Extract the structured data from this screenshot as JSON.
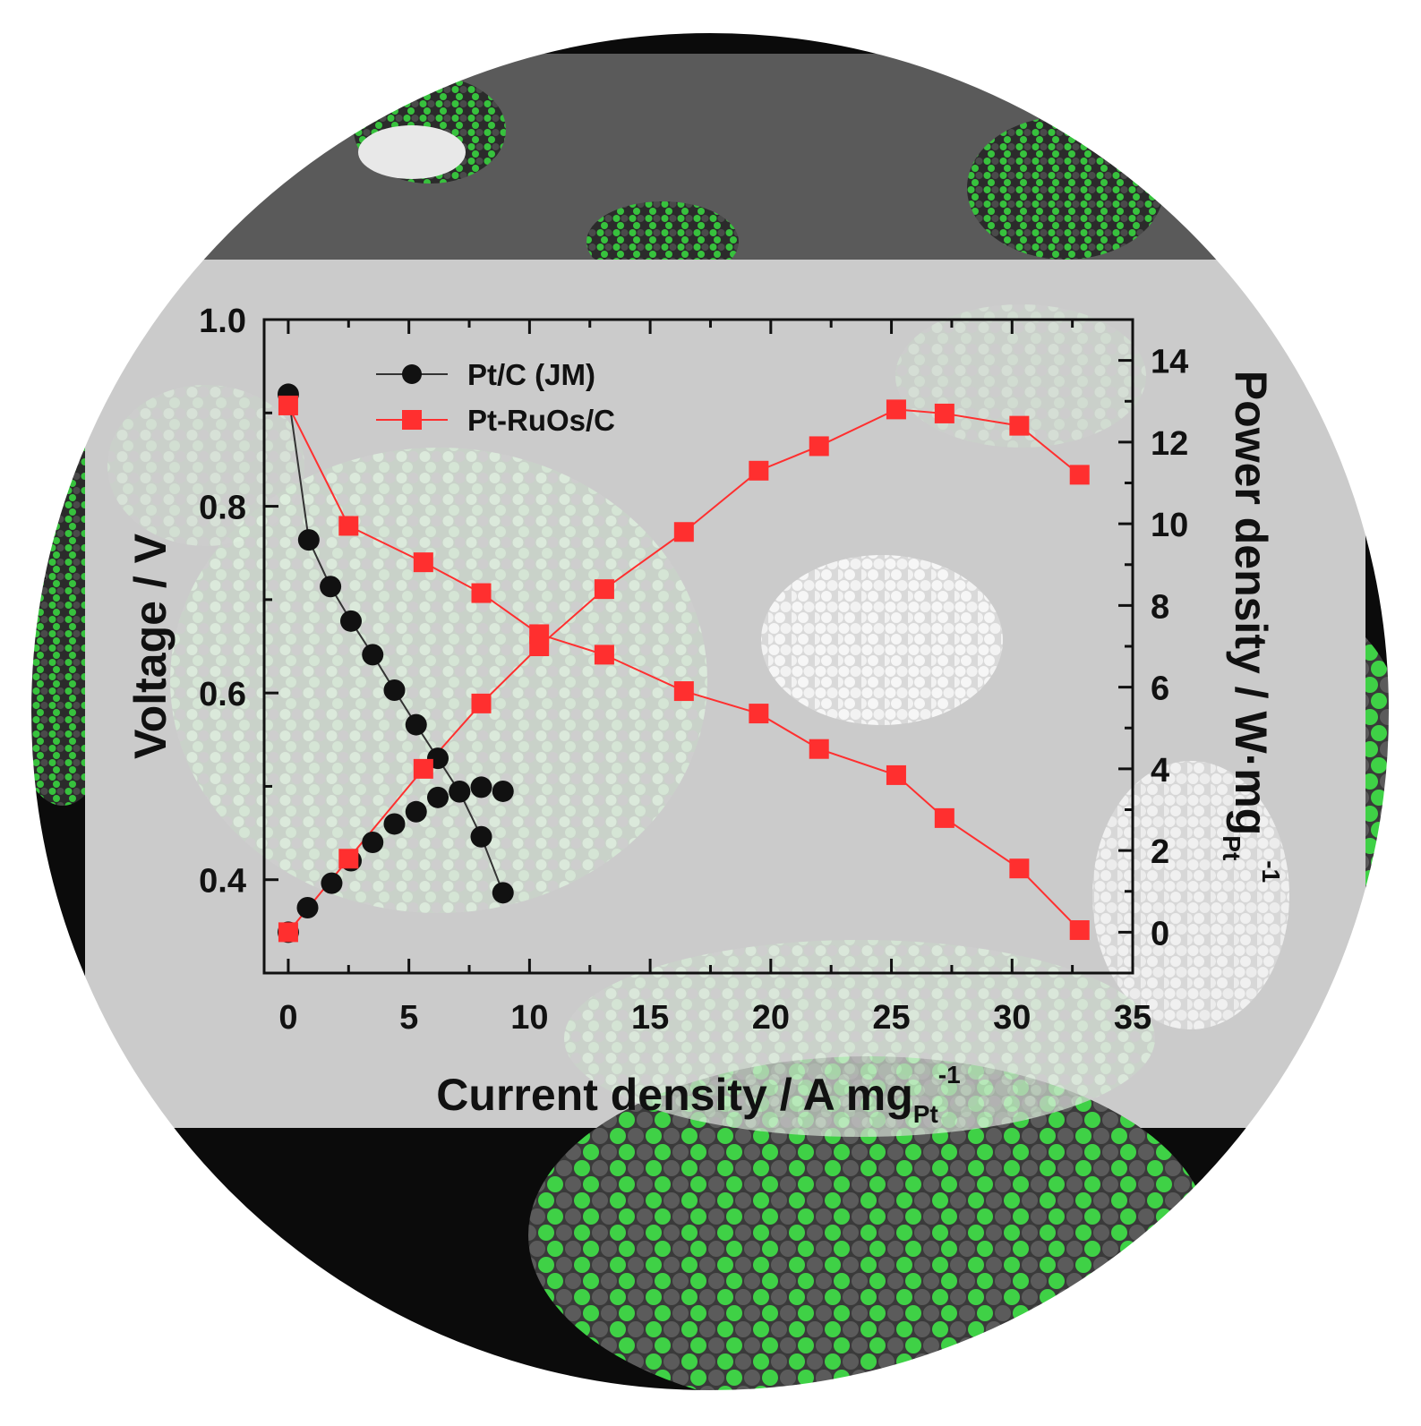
{
  "colors": {
    "pt_c": "#111111",
    "pt_ruos": "#ff2f2f",
    "nanoparticle_green": "#35c93c",
    "nanoparticle_gray": "#5a5a5a",
    "panel": "#cfcfcf",
    "background": "#0b0b0b"
  },
  "chart_data": {
    "type": "scatter",
    "xlabel": "Current density / A mg",
    "xlabel_sub": "Pt",
    "xlabel_sup": "-1",
    "ylabel_left": "Voltage / V",
    "ylabel_right": "Power density / W·mg",
    "ylabel_right_sub": "Pt",
    "ylabel_right_sup": "-1",
    "xlim": [
      -1,
      35
    ],
    "ylim_left": [
      0.3,
      1.0
    ],
    "ylim_right": [
      -1.0,
      15.0
    ],
    "x_ticks": [
      "0",
      "5",
      "10",
      "15",
      "20",
      "25",
      "30",
      "35"
    ],
    "x_tick_values": [
      0,
      5,
      10,
      15,
      20,
      25,
      30,
      35
    ],
    "y_left_ticks": [
      "0.4",
      "0.6",
      "0.8",
      "1.0"
    ],
    "y_left_tick_values": [
      0.4,
      0.6,
      0.8,
      1.0
    ],
    "y_right_ticks": [
      "0",
      "2",
      "4",
      "6",
      "8",
      "10",
      "12",
      "14"
    ],
    "y_right_tick_values": [
      0,
      2,
      4,
      6,
      8,
      10,
      12,
      14
    ],
    "legend_position": "top-left",
    "series": [
      {
        "name": "Pt/C (JM)",
        "marker": "circle",
        "color": "#111111",
        "axis": "left",
        "kind": "polarization",
        "x": [
          0.0,
          0.85,
          1.75,
          2.6,
          3.5,
          4.4,
          5.3,
          6.2,
          7.1,
          8.0,
          8.9
        ],
        "y": [
          0.92,
          0.764,
          0.714,
          0.677,
          0.641,
          0.603,
          0.566,
          0.53,
          0.494,
          0.446,
          0.386
        ],
        "connected": true
      },
      {
        "name": "Pt/C (JM) power",
        "marker": "circle",
        "color": "#111111",
        "axis": "right",
        "kind": "power",
        "x": [
          0.0,
          0.8,
          1.8,
          2.6,
          3.5,
          4.4,
          5.3,
          6.2,
          7.1,
          8.0,
          8.9
        ],
        "y": [
          0.0,
          0.6,
          1.2,
          1.75,
          2.2,
          2.65,
          2.95,
          3.3,
          3.45,
          3.55,
          3.45
        ],
        "connected": false
      },
      {
        "name": "Pt-RuOs/C",
        "marker": "square",
        "color": "#ff2f2f",
        "axis": "left",
        "kind": "polarization",
        "x": [
          0.0,
          2.5,
          5.6,
          8.0,
          10.4,
          13.1,
          16.4,
          19.5,
          22.0,
          25.2,
          27.2,
          30.3,
          32.8
        ],
        "y": [
          0.908,
          0.779,
          0.74,
          0.707,
          0.663,
          0.641,
          0.602,
          0.578,
          0.54,
          0.512,
          0.466,
          0.412,
          0.346
        ],
        "connected": true
      },
      {
        "name": "Pt-RuOs/C power",
        "marker": "square",
        "color": "#ff2f2f",
        "axis": "right",
        "kind": "power",
        "x": [
          0.0,
          2.5,
          5.6,
          8.0,
          10.4,
          13.1,
          16.4,
          19.5,
          22.0,
          25.2,
          27.2,
          30.3,
          32.8
        ],
        "y": [
          0.0,
          1.8,
          4.0,
          5.6,
          7.0,
          8.4,
          9.8,
          11.3,
          11.9,
          12.8,
          12.7,
          12.4,
          11.2
        ],
        "connected": true
      }
    ]
  }
}
